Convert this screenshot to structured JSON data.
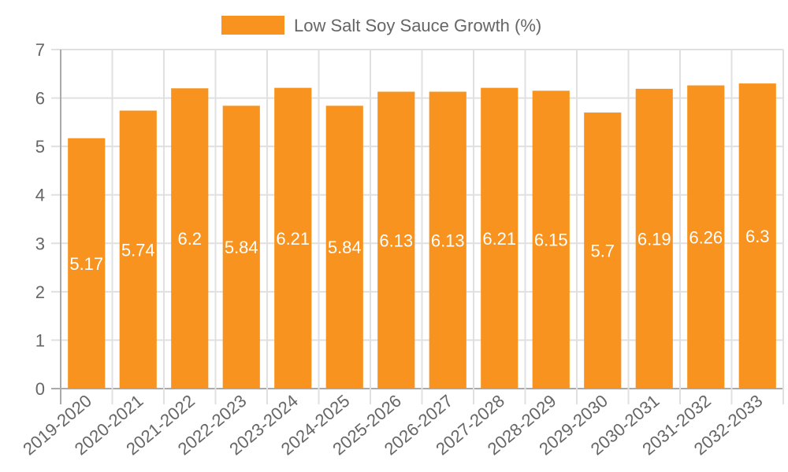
{
  "chart_data": {
    "type": "bar",
    "title": "",
    "legend": [
      {
        "label": "Low Salt Soy Sauce Growth (%)",
        "color": "#f7931e"
      }
    ],
    "legend_position": "top",
    "xlabel": "",
    "ylabel": "",
    "ylim": [
      0,
      7
    ],
    "yticks": [
      0,
      1,
      2,
      3,
      4,
      5,
      6,
      7
    ],
    "grid": true,
    "categories": [
      "2019-2020",
      "2020-2021",
      "2021-2022",
      "2022-2023",
      "2023-2024",
      "2024-2025",
      "2025-2026",
      "2026-2027",
      "2027-2028",
      "2028-2029",
      "2029-2030",
      "2030-2031",
      "2031-2032",
      "2032-2033"
    ],
    "series": [
      {
        "name": "Low Salt Soy Sauce Growth (%)",
        "color": "#f7931e",
        "values": [
          5.17,
          5.74,
          6.2,
          5.84,
          6.21,
          5.84,
          6.13,
          6.13,
          6.21,
          6.15,
          5.7,
          6.19,
          6.26,
          6.3
        ]
      }
    ],
    "data_labels": true
  }
}
